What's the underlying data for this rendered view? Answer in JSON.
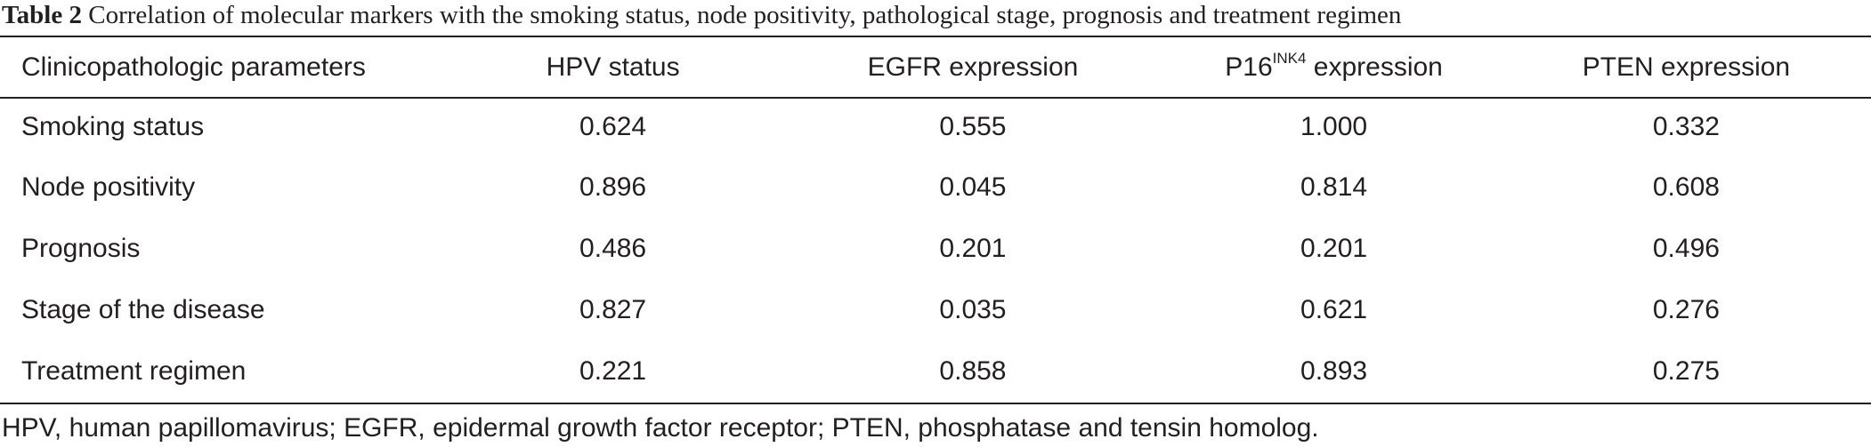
{
  "caption": {
    "label": "Table 2",
    "text": "Correlation of molecular markers with the smoking status, node positivity, pathological stage, prognosis and treatment regimen"
  },
  "table": {
    "headers": [
      {
        "text": "Clinicopathologic parameters"
      },
      {
        "text": "HPV status"
      },
      {
        "text": "EGFR expression"
      },
      {
        "text": "P16",
        "superscript": "INK4",
        "suffix": " expression"
      },
      {
        "text": "PTEN expression"
      }
    ],
    "rows": [
      [
        "Smoking status",
        "0.624",
        "0.555",
        "1.000",
        "0.332"
      ],
      [
        "Node positivity",
        "0.896",
        "0.045",
        "0.814",
        "0.608"
      ],
      [
        "Prognosis",
        "0.486",
        "0.201",
        "0.201",
        "0.496"
      ],
      [
        "Stage of the disease",
        "0.827",
        "0.035",
        "0.621",
        "0.276"
      ],
      [
        "Treatment regimen",
        "0.221",
        "0.858",
        "0.893",
        "0.275"
      ]
    ]
  },
  "footnote": "HPV, human papillomavirus; EGFR, epidermal growth factor receptor; PTEN, phosphatase and tensin homolog."
}
